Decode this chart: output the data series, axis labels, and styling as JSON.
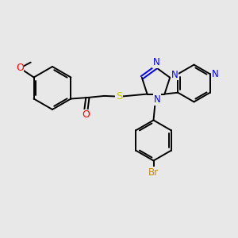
{
  "background_color": "#e8e8e8",
  "bond_color": "#000000",
  "heteroatom_colors": {
    "O": "#ff0000",
    "N": "#0000ff",
    "S": "#cccc00",
    "Br": "#cc8800"
  },
  "figsize": [
    3.0,
    3.0
  ],
  "dpi": 100,
  "xlim": [
    0,
    10
  ],
  "ylim": [
    0,
    10
  ]
}
